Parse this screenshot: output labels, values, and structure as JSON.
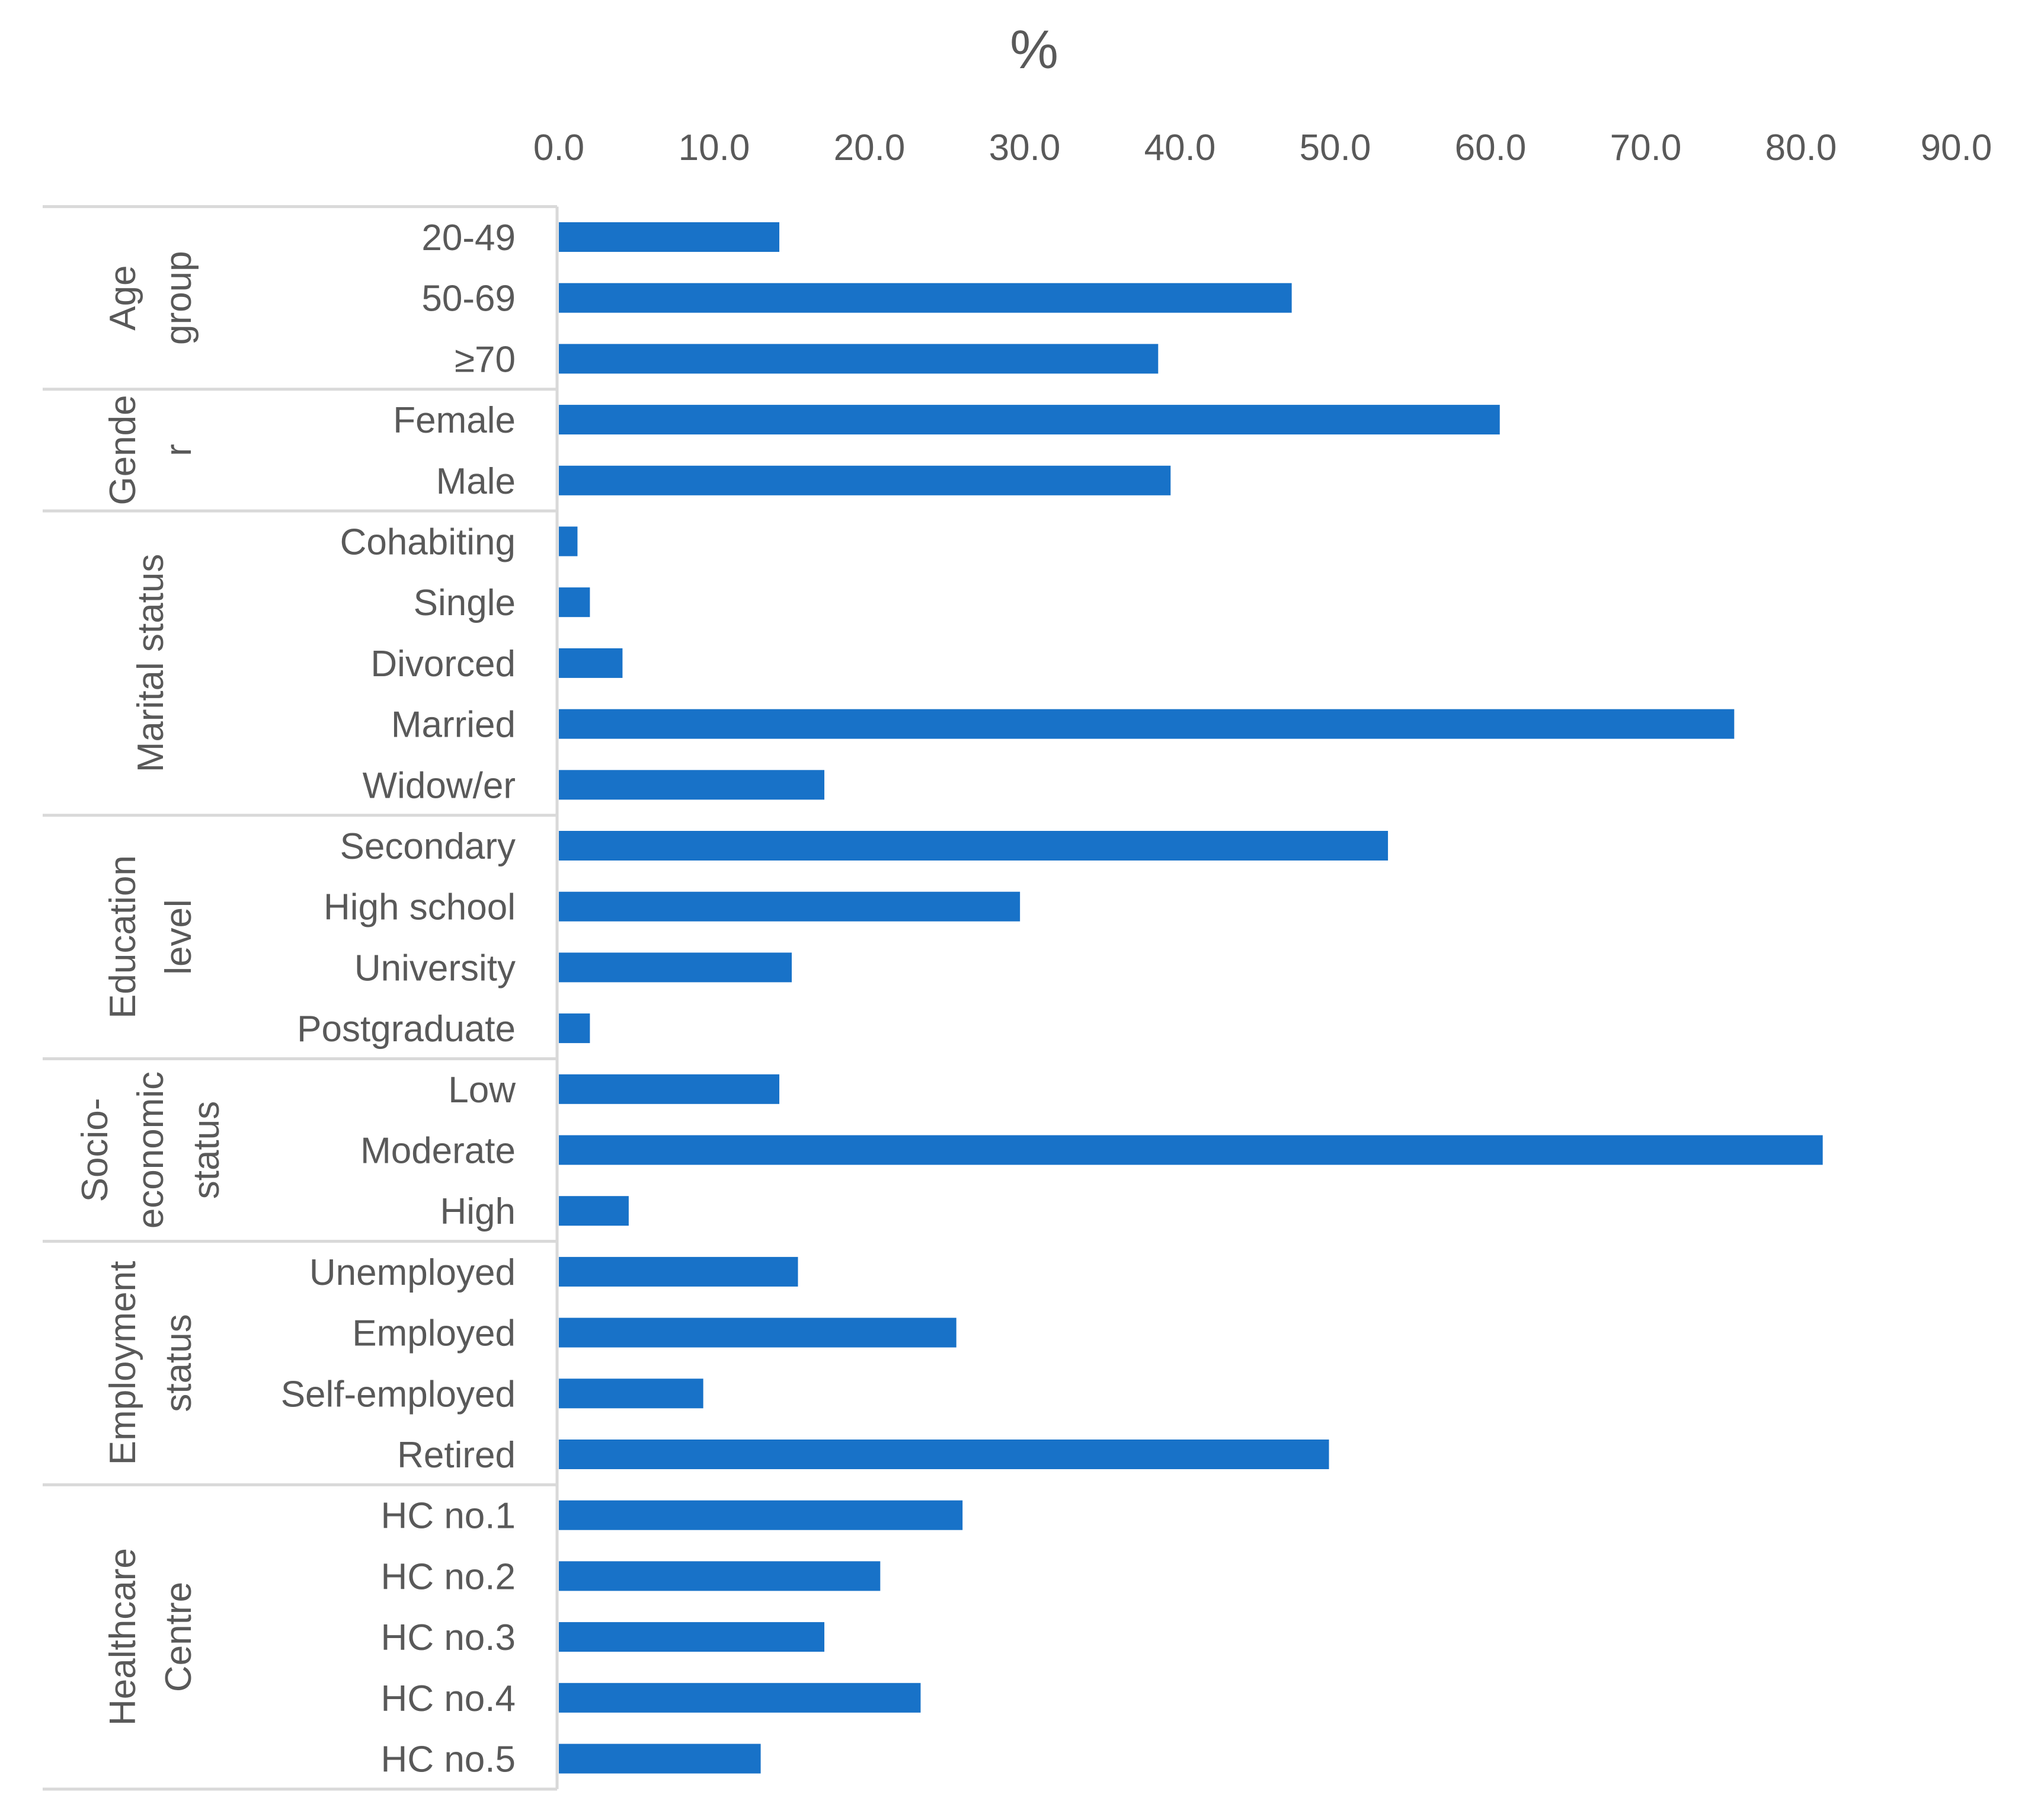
{
  "chart_data": {
    "type": "bar",
    "orientation": "horizontal",
    "title": "",
    "xlabel": "%",
    "ylabel": "",
    "xlim": [
      0,
      90
    ],
    "ticks": [
      "0.0",
      "10.0",
      "20.0",
      "30.0",
      "40.0",
      "50.0",
      "60.0",
      "70.0",
      "80.0",
      "90.0"
    ],
    "tick_values": [
      0,
      10,
      20,
      30,
      40,
      50,
      60,
      70,
      80,
      90
    ],
    "axis_position": "top",
    "grid": false,
    "bar_color": "#1872C8",
    "groups": [
      {
        "label_lines": [
          "Age",
          "group"
        ],
        "categories": [
          "20-49",
          "50-69",
          "≥70"
        ],
        "values": [
          14.2,
          47.2,
          38.6
        ]
      },
      {
        "label_lines": [
          "Gende",
          "r"
        ],
        "categories": [
          "Female",
          "Male"
        ],
        "values": [
          60.6,
          39.4
        ]
      },
      {
        "label_lines": [
          "Marital status"
        ],
        "categories": [
          "Cohabiting",
          "Single",
          "Divorced",
          "Married",
          "Widow/er"
        ],
        "values": [
          1.2,
          2.0,
          4.1,
          75.7,
          17.1
        ]
      },
      {
        "label_lines": [
          "Education",
          "level"
        ],
        "categories": [
          "Secondary",
          "High school",
          "University",
          "Postgraduate"
        ],
        "values": [
          53.4,
          29.7,
          15.0,
          2.0
        ]
      },
      {
        "label_lines": [
          "Socio-",
          "economic",
          "status"
        ],
        "categories": [
          "Low",
          "Moderate",
          "High"
        ],
        "values": [
          14.2,
          81.4,
          4.5
        ]
      },
      {
        "label_lines": [
          "Employment",
          "status"
        ],
        "categories": [
          "Unemployed",
          "Employed",
          "Self-employed",
          "Retired"
        ],
        "values": [
          15.4,
          25.6,
          9.3,
          49.6
        ]
      },
      {
        "label_lines": [
          "Healthcare",
          "Centre"
        ],
        "categories": [
          "HC no.1",
          "HC no.2",
          "HC no.3",
          "HC no.4",
          "HC no.5"
        ],
        "values": [
          26.0,
          20.7,
          17.1,
          23.3,
          13.0
        ]
      }
    ]
  }
}
